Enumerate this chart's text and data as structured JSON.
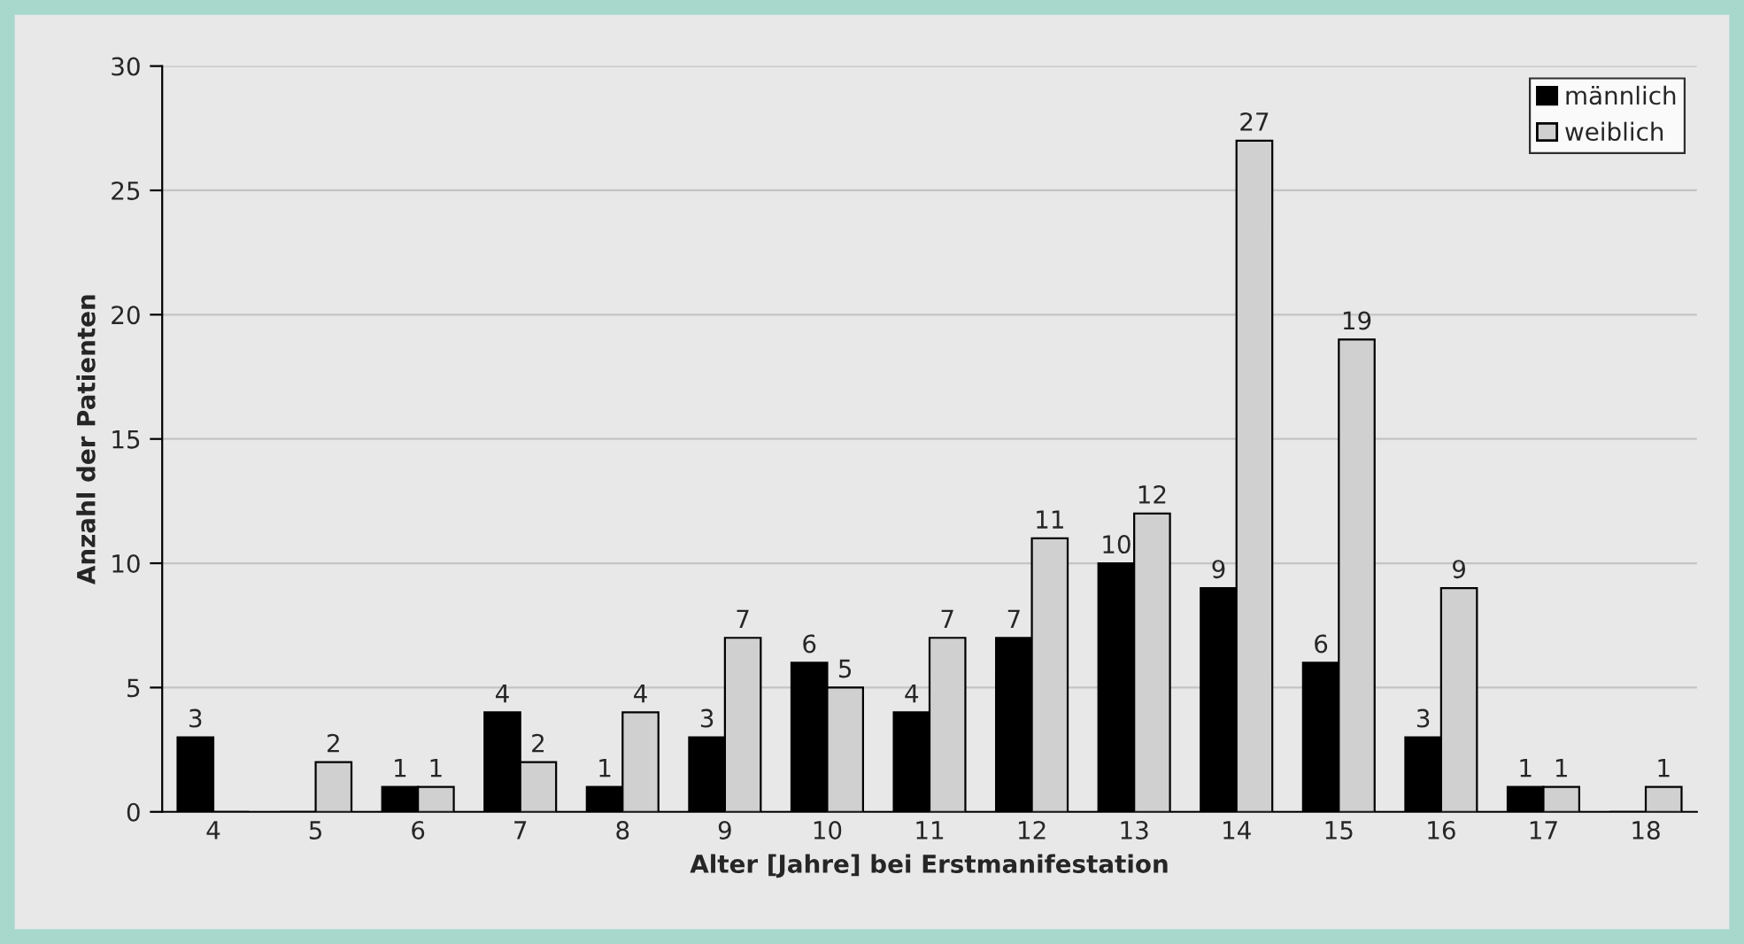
{
  "chart_data": {
    "type": "bar",
    "xlabel": "Alter [Jahre] bei Erstmanifestation",
    "ylabel": "Anzahl der Patienten",
    "categories": [
      "4",
      "5",
      "6",
      "7",
      "8",
      "9",
      "10",
      "11",
      "12",
      "13",
      "14",
      "15",
      "16",
      "17",
      "18"
    ],
    "series": [
      {
        "name": "männlich",
        "color": "#000000",
        "values": [
          3,
          0,
          1,
          4,
          1,
          3,
          6,
          4,
          7,
          10,
          9,
          6,
          3,
          1,
          0
        ],
        "value_labels": [
          "3",
          null,
          "1",
          "4",
          "1",
          "3",
          "6",
          "4",
          "7",
          "10",
          "9",
          "6",
          "3",
          "1",
          null
        ]
      },
      {
        "name": "weiblich",
        "color": "#d0d0d0",
        "values": [
          0,
          2,
          1,
          2,
          4,
          7,
          5,
          7,
          11,
          12,
          27,
          19,
          9,
          1,
          1
        ],
        "value_labels": [
          null,
          "2",
          "1",
          "2",
          "4",
          "7",
          "5",
          "7",
          "11",
          "12",
          "27",
          "19",
          "9",
          "1",
          "1"
        ]
      }
    ],
    "ylim": [
      0,
      30
    ],
    "yticks": [
      0,
      5,
      10,
      15,
      20,
      25,
      30
    ],
    "grid": "y",
    "legend": "top right"
  }
}
